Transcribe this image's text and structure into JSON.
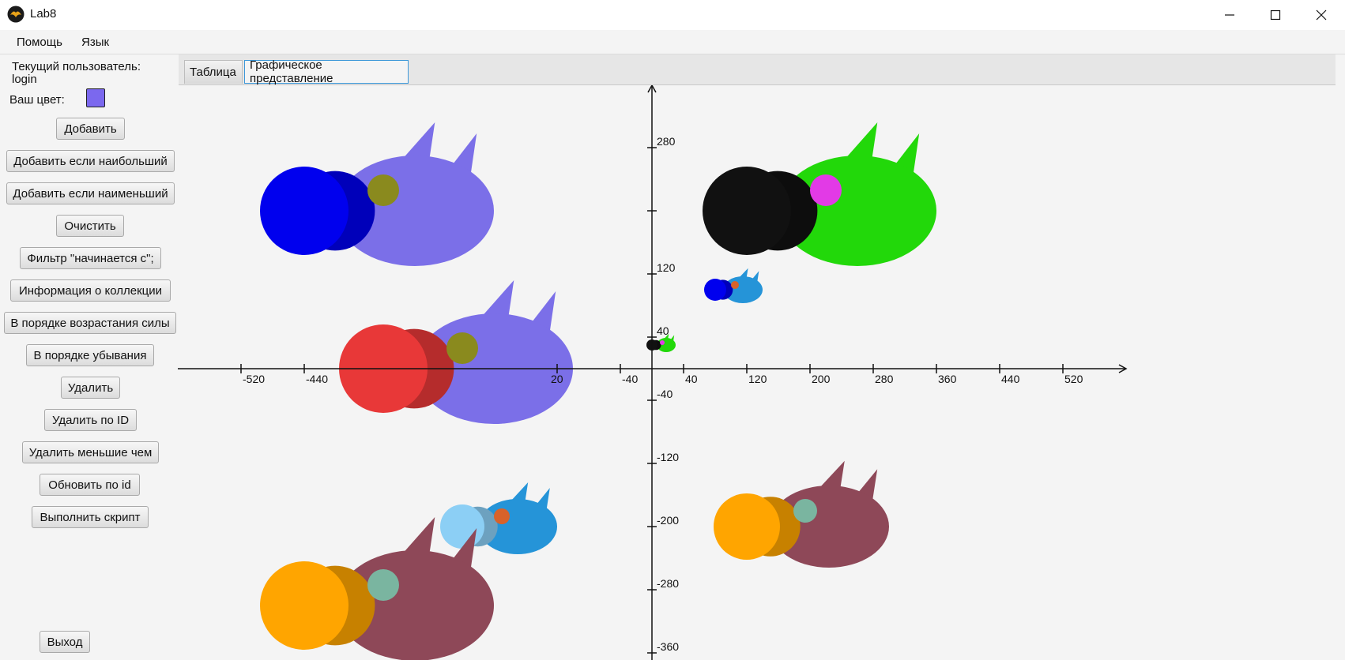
{
  "window": {
    "title": "Lab8"
  },
  "menu": {
    "items": [
      {
        "label": "Помощь"
      },
      {
        "label": "Язык"
      }
    ]
  },
  "sidebar": {
    "user_caption": "Текущий пользователь:",
    "user_name": "login",
    "color_caption": "Ваш цвет:",
    "user_color": "#7b68ee",
    "buttons": {
      "add": "Добавить",
      "add_if_max": "Добавить если наибольший",
      "add_if_min": "Добавить если наименьший",
      "clear": "Очистить",
      "filter_starts_with": "Фильтр \"начинается с\";",
      "info": "Информация о коллекции",
      "sort_by_power": "В порядке возрастания силы",
      "sort_descending": "В порядке убывания",
      "remove": "Удалить",
      "remove_by_id": "Удалить по ID",
      "remove_lower": "Удалить меньшие чем",
      "update_by_id": "Обновить по id",
      "execute_script": "Выполнить скрипт",
      "exit": "Выход"
    }
  },
  "tabs": {
    "table": "Таблица",
    "graphics": "Графическое представление",
    "active": "graphics"
  },
  "chart_data": {
    "type": "scatter",
    "x_tick_labels": [
      "-520",
      "-440",
      "20",
      "-40",
      "40",
      "120",
      "200",
      "280",
      "360",
      "440",
      "520"
    ],
    "y_tick_labels": [
      "280",
      "120",
      "40",
      "-40",
      "-120",
      "-200",
      "-280",
      "-360"
    ],
    "objects": [
      {
        "name": "dragon-blue-purple-top-left",
        "x": -440,
        "y": 200,
        "size": "large",
        "body_color": "#7b6fe8",
        "head_color": "#0000ee",
        "eye_color": "#8a8a1e"
      },
      {
        "name": "dragon-black-green-top-right",
        "x": 120,
        "y": 200,
        "size": "large",
        "body_color": "#22d80a",
        "head_color": "#111111",
        "eye_color": "#e23ae6"
      },
      {
        "name": "dragon-small-blue-cyan",
        "x": 80,
        "y": 100,
        "size": "small",
        "body_color": "#2594d8",
        "head_color": "#0000ee",
        "eye_color": "#d8622a"
      },
      {
        "name": "dragon-tiny-black-green",
        "x": 0,
        "y": 30,
        "size": "tiny",
        "body_color": "#22d80a",
        "head_color": "#111111",
        "eye_color": "#e23ae6"
      },
      {
        "name": "dragon-red-purple-middle-left",
        "x": -340,
        "y": 0,
        "size": "large",
        "body_color": "#7b6fe8",
        "head_color": "#e83838",
        "eye_color": "#8a8a1e"
      },
      {
        "name": "dragon-lightblue-cyan-bottom-left",
        "x": -240,
        "y": -200,
        "size": "medium",
        "body_color": "#2594d8",
        "head_color": "#8ccff5",
        "eye_color": "#d8622a"
      },
      {
        "name": "dragon-orange-maroon-bottom-right",
        "x": 120,
        "y": -200,
        "size": "large-short",
        "body_color": "#8e4858",
        "head_color": "#ffa500",
        "eye_color": "#7ab5a0"
      },
      {
        "name": "dragon-orange-maroon-bottom-left",
        "x": -440,
        "y": -300,
        "size": "large",
        "body_color": "#8e4858",
        "head_color": "#ffa500",
        "eye_color": "#7ab5a0"
      }
    ]
  }
}
